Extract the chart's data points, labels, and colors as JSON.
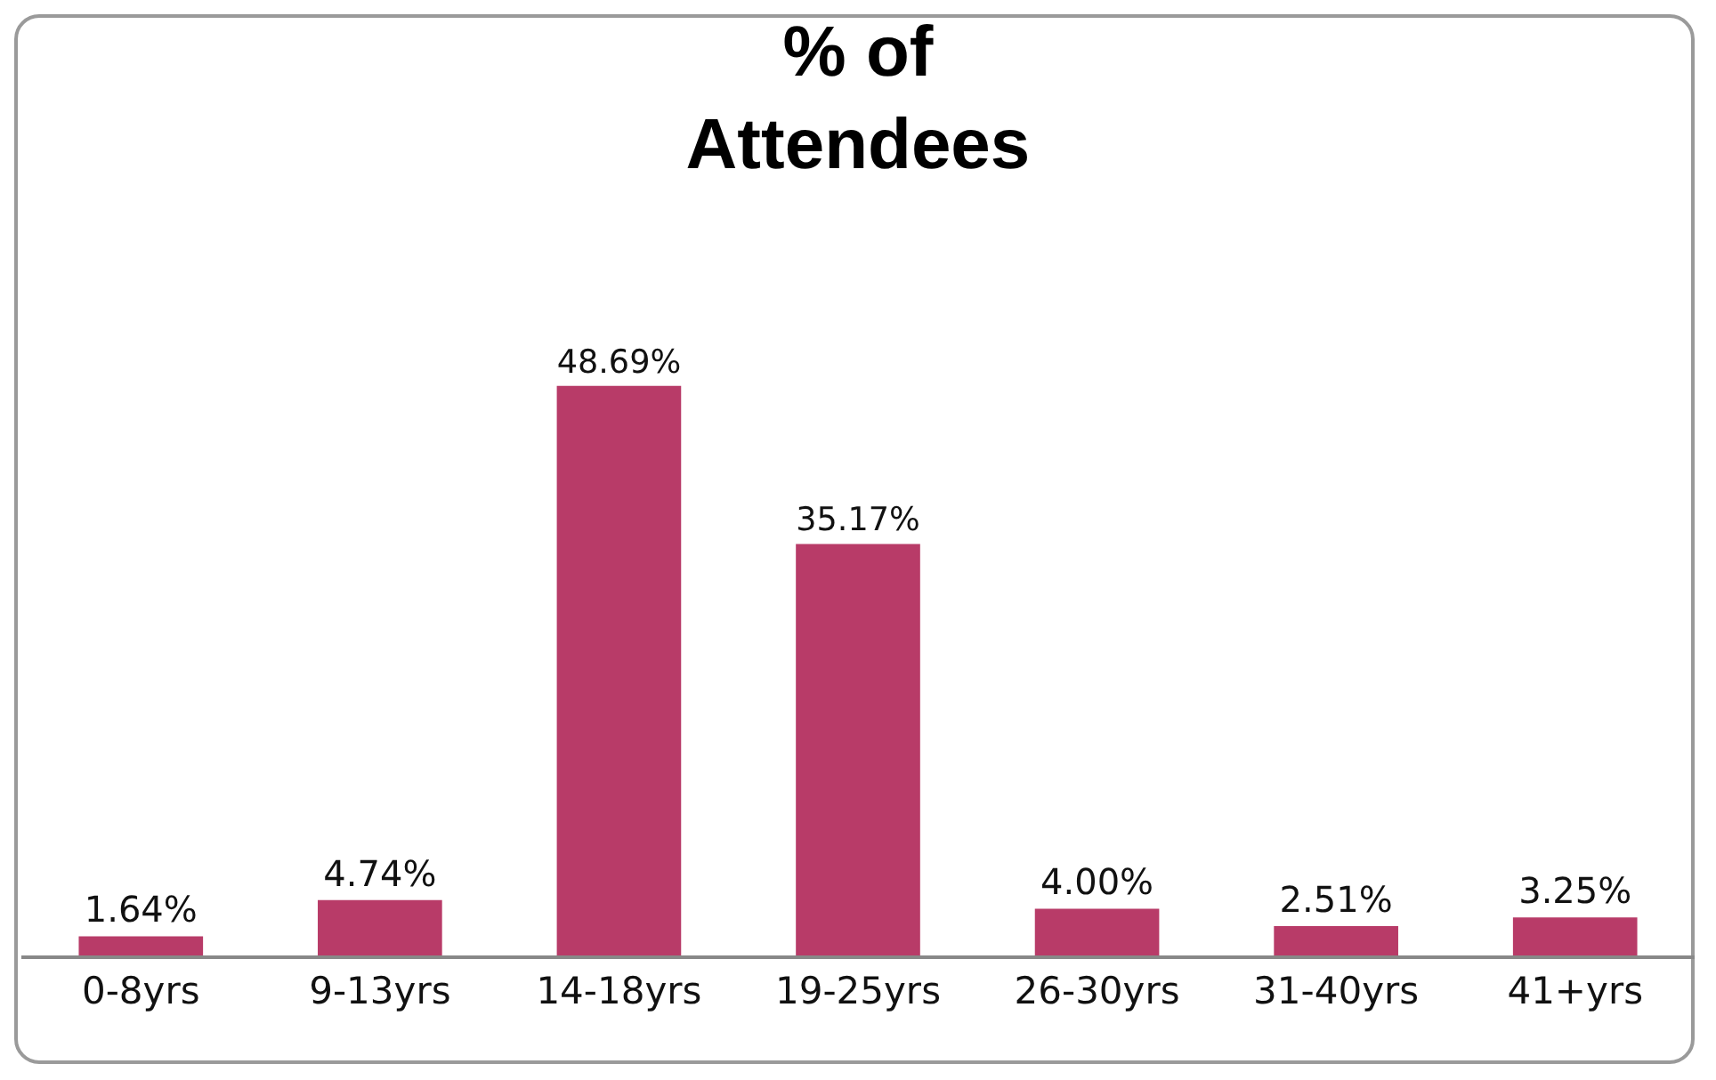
{
  "chart_data": {
    "type": "bar",
    "title": "% of\nAttendees",
    "categories": [
      "0-8yrs",
      "9-13yrs",
      "14-18yrs",
      "19-25yrs",
      "26-30yrs",
      "31-40yrs",
      "41+yrs"
    ],
    "values": [
      1.64,
      4.74,
      48.69,
      35.17,
      4.0,
      2.51,
      3.25
    ],
    "value_labels": [
      "1.64%",
      "4.74%",
      "48.69%",
      "35.17%",
      "4.00%",
      "2.51%",
      "3.25%"
    ],
    "color": "#b83b68"
  }
}
